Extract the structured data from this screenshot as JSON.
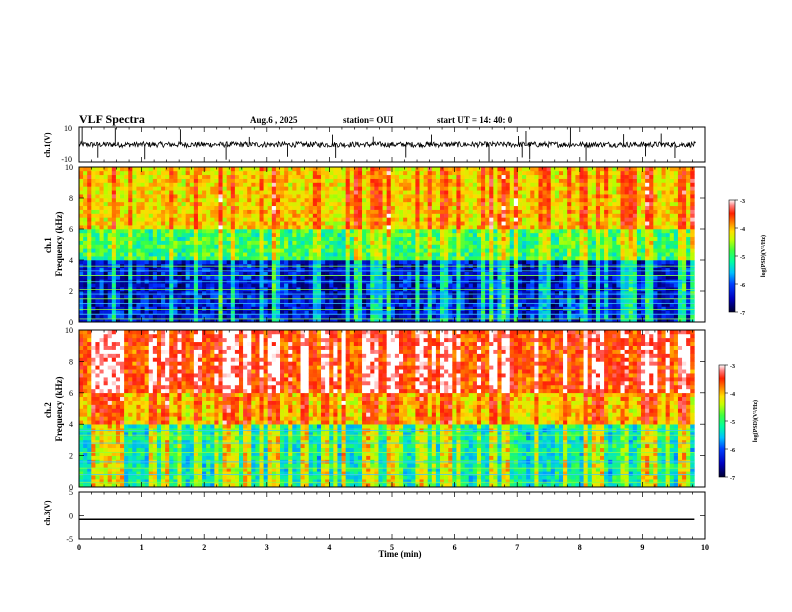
{
  "header": {
    "title": "VLF Spectra",
    "date": "Aug.6 , 2025",
    "station": "station= OUI",
    "start": "start UT = 14: 40: 0"
  },
  "colors": {
    "colormap": [
      "#ffffff",
      "#ff6060",
      "#ff2a10",
      "#ffa000",
      "#f0e000",
      "#c8ff00",
      "#50ff40",
      "#00ff90",
      "#00e8e8",
      "#00a0ff",
      "#0040ff",
      "#0000c0",
      "#000070",
      "#000030"
    ]
  },
  "chart_data": [
    {
      "type": "line",
      "panel": "channel-1-waveform",
      "ylabel": "ch.1(V)",
      "ylim": [
        -10,
        10
      ],
      "yticks": [
        "10",
        "-10"
      ],
      "xlim": [
        0,
        10
      ],
      "baseline": 0,
      "spike_times_min": [
        0.05,
        0.3,
        0.58,
        1.05,
        1.62,
        2.35,
        2.72,
        3.33,
        4.05,
        4.1,
        4.7,
        5.22,
        5.63,
        6.55,
        7.02,
        7.08,
        7.14,
        7.2,
        7.85,
        8.1,
        8.7,
        9.05,
        9.3,
        9.52
      ]
    },
    {
      "type": "heatmap",
      "panel": "channel-1-spectrogram",
      "ylabel": "ch.1\nFrequency (kHz)",
      "ylim": [
        0,
        10
      ],
      "yticks": [
        "0",
        "2",
        "4",
        "6",
        "8",
        "10"
      ],
      "xlim": [
        0,
        9.83
      ],
      "colorbar": {
        "label": "log(PSD)(V²/Hz)",
        "range": [
          -7,
          -3
        ],
        "ticks": [
          "-3",
          "-4",
          "-5",
          "-6",
          "-7"
        ]
      },
      "base_level_logpsd": {
        "below_4kHz": -6.6,
        "4_to_6kHz": -5.2,
        "above_6kHz": -4.4
      },
      "tone_lines_kHz": [
        0.2,
        0.5,
        0.8,
        1.2,
        1.5,
        1.8,
        2.1,
        2.6,
        3.0,
        3.3,
        3.6
      ]
    },
    {
      "type": "heatmap",
      "panel": "channel-2-spectrogram",
      "ylabel": "ch.2\nFrequency (kHz)",
      "ylim": [
        0,
        10
      ],
      "yticks": [
        "0",
        "2",
        "4",
        "6",
        "8",
        "10"
      ],
      "xlim": [
        0,
        9.83
      ],
      "colorbar": {
        "label": "log(PSD)(V²/Hz)",
        "range": [
          -7,
          -3
        ],
        "ticks": [
          "-3",
          "-4",
          "-5",
          "-6",
          "-7"
        ]
      },
      "base_level_logpsd": {
        "below_4kHz": -5.6,
        "4_to_6kHz": -4.4,
        "above_6kHz": -3.8
      },
      "tone_lines_kHz": [
        0.3,
        0.8,
        1.2,
        1.6,
        2.2,
        2.8,
        3.3,
        3.6
      ]
    },
    {
      "type": "line",
      "panel": "channel-3-waveform",
      "ylabel": "ch.3(V)",
      "ylim": [
        -5,
        5
      ],
      "yticks": [
        "5",
        "0",
        "-5"
      ],
      "xlim": [
        0,
        10
      ],
      "constant_value": -0.8
    }
  ],
  "xaxis": {
    "label": "Time (min)",
    "range": [
      0,
      10
    ],
    "ticks": [
      "0",
      "1",
      "2",
      "3",
      "4",
      "5",
      "6",
      "7",
      "8",
      "9",
      "10"
    ]
  }
}
